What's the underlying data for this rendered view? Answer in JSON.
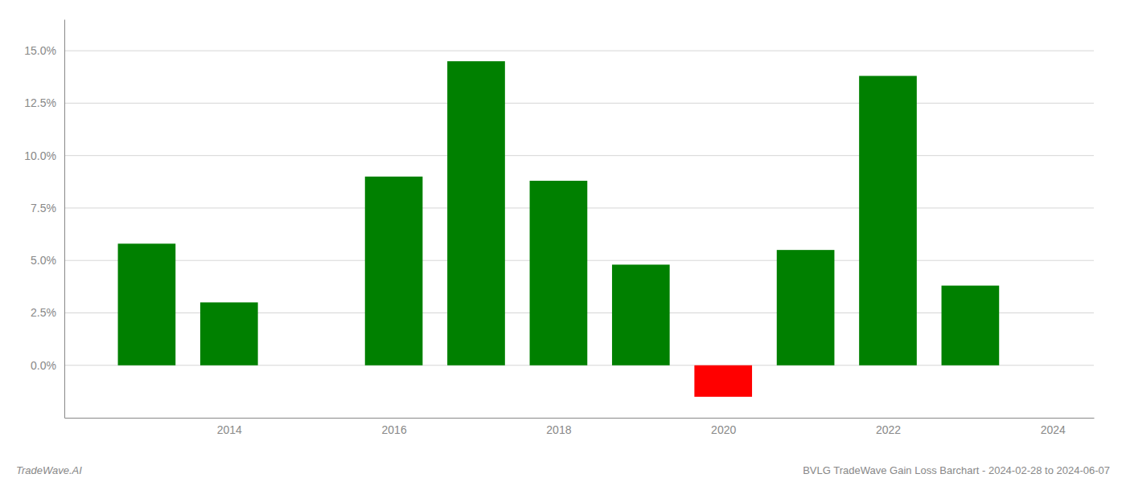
{
  "chart_data": {
    "type": "bar",
    "x": [
      2013,
      2014,
      2016,
      2017,
      2018,
      2019,
      2020,
      2021,
      2022,
      2023
    ],
    "values": [
      0.058,
      0.03,
      0.09,
      0.145,
      0.088,
      0.048,
      -0.015,
      0.055,
      0.138,
      0.038
    ],
    "colors": [
      "#008000",
      "#008000",
      "#008000",
      "#008000",
      "#008000",
      "#008000",
      "#ff0000",
      "#008000",
      "#008000",
      "#008000"
    ],
    "xlim": [
      2012.0,
      2024.5
    ],
    "xticks": [
      2014,
      2016,
      2018,
      2020,
      2022,
      2024
    ],
    "ylim": [
      -0.025,
      0.165
    ],
    "yticks": [
      {
        "value": 0.0,
        "label": "0.0%"
      },
      {
        "value": 0.025,
        "label": "2.5%"
      },
      {
        "value": 0.05,
        "label": "5.0%"
      },
      {
        "value": 0.075,
        "label": "7.5%"
      },
      {
        "value": 0.1,
        "label": "10.0%"
      },
      {
        "value": 0.125,
        "label": "12.5%"
      },
      {
        "value": 0.15,
        "label": "15.0%"
      }
    ],
    "grid": true,
    "annotations": [
      "TradeWave.AI",
      "BVLG TradeWave Gain Loss Barchart - 2024-02-28 to 2024-06-07"
    ]
  }
}
